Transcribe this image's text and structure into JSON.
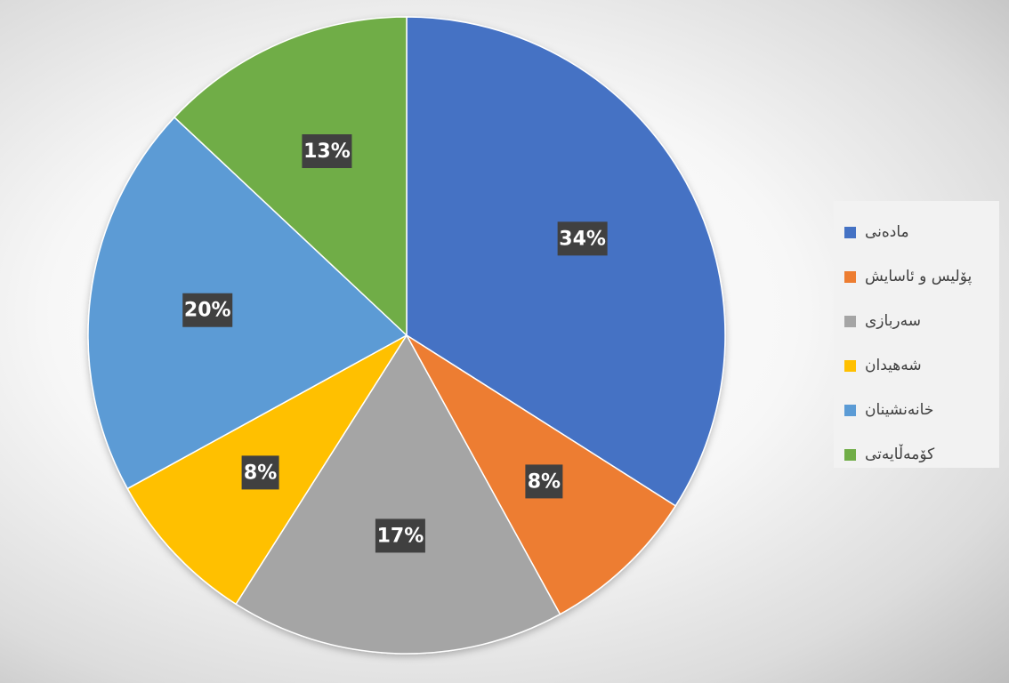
{
  "chart_data": {
    "type": "pie",
    "categories": [
      "مادەنی",
      "پۆلیس و ئاسایش",
      "سەربازی",
      "شەهیدان",
      "خانەنشینان",
      "کۆمەڵایەتی"
    ],
    "values": [
      34,
      8,
      17,
      8,
      20,
      13
    ],
    "labels": [
      "34%",
      "8%",
      "17%",
      "8%",
      "20%",
      "13%"
    ],
    "colors": [
      "#4472C4",
      "#ED7D31",
      "#A5A5A5",
      "#FFC000",
      "#5B9BD5",
      "#70AD47"
    ],
    "label_background": "#404040",
    "label_color": "#FFFFFF",
    "start_angle": "12 o'clock",
    "direction": "clockwise",
    "legend": "right"
  }
}
